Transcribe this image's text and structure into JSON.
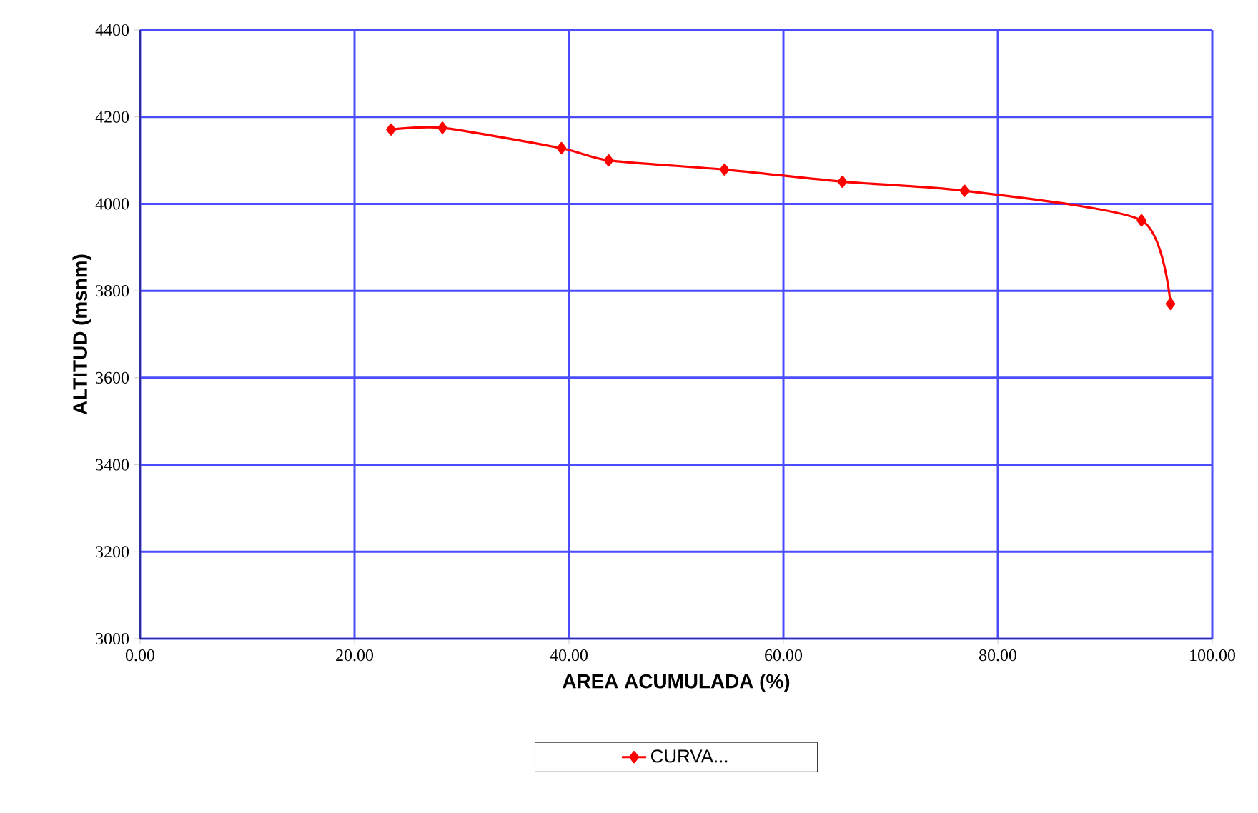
{
  "chart_data": {
    "type": "line",
    "xlabel": "AREA  ACUMULADA  (%)",
    "ylabel": "ALTITUD  (msnm)",
    "x": [
      23.4,
      28.2,
      39.3,
      43.7,
      54.5,
      65.5,
      76.9,
      93.4,
      96.1
    ],
    "series": [
      {
        "name": "CURVA...",
        "color": "#ff0000",
        "values": [
          4171,
          4175,
          4128,
          4100,
          4079,
          4051,
          4030,
          3962,
          3770
        ]
      }
    ],
    "xlim": [
      0,
      100
    ],
    "ylim": [
      3000,
      4400
    ],
    "xticks": [
      {
        "value": 0,
        "label": "0.00"
      },
      {
        "value": 20,
        "label": "20.00"
      },
      {
        "value": 40,
        "label": "40.00"
      },
      {
        "value": 60,
        "label": "60.00"
      },
      {
        "value": 80,
        "label": "80.00"
      },
      {
        "value": 100,
        "label": "100.00"
      }
    ],
    "yticks": [
      3000,
      3200,
      3400,
      3600,
      3800,
      4000,
      4200,
      4400
    ],
    "grid": true,
    "legend": "bottom",
    "marker": "diamond",
    "line_style": "solid"
  }
}
